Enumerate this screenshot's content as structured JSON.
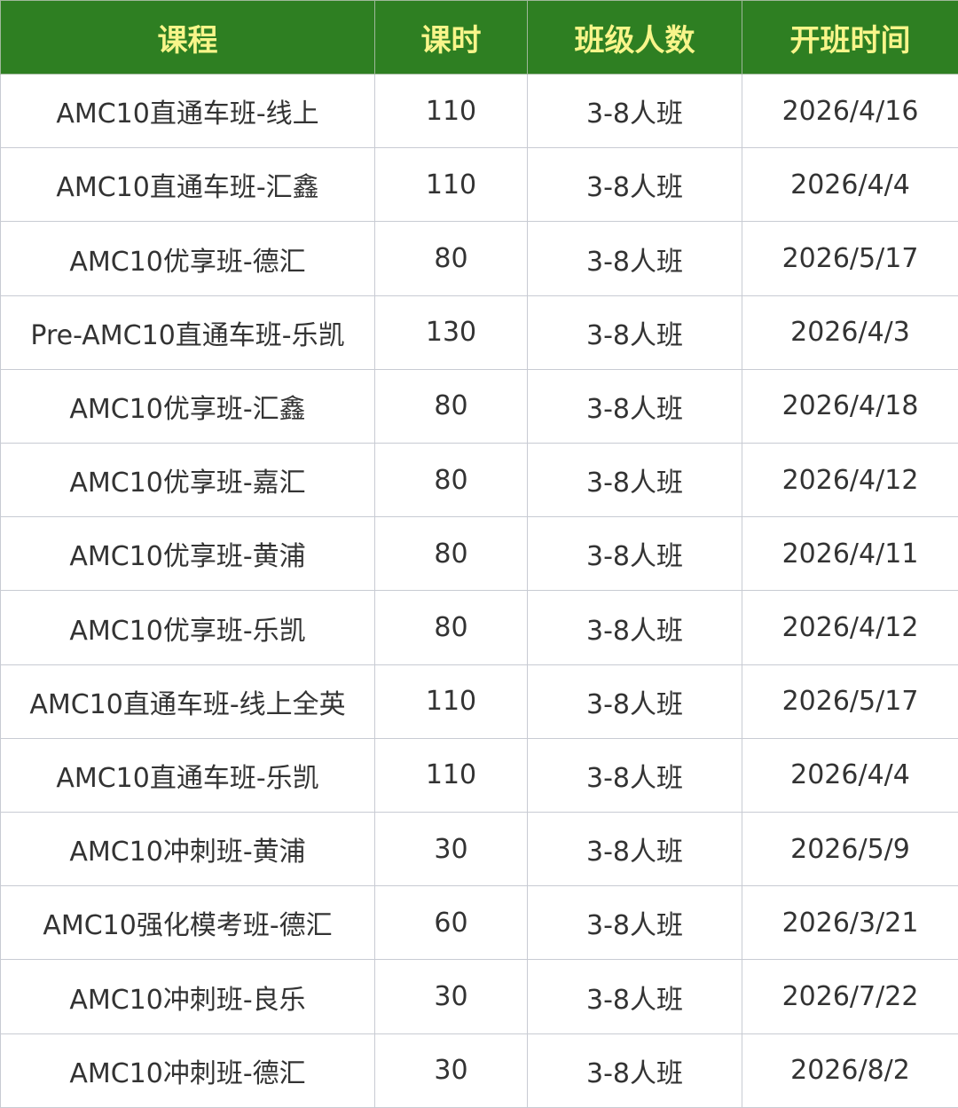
{
  "colors": {
    "header_bg": "#2e7f22",
    "header_text": "#f8f58a",
    "border": "#c8cbd3",
    "cell_text": "#333333"
  },
  "table": {
    "headers": [
      "课程",
      "课时",
      "班级人数",
      "开班时间"
    ],
    "rows": [
      [
        "AMC10直通车班-线上",
        "110",
        "3-8人班",
        "2026/4/16"
      ],
      [
        "AMC10直通车班-汇鑫",
        "110",
        "3-8人班",
        "2026/4/4"
      ],
      [
        "AMC10优享班-德汇",
        "80",
        "3-8人班",
        "2026/5/17"
      ],
      [
        "Pre-AMC10直通车班-乐凯",
        "130",
        "3-8人班",
        "2026/4/3"
      ],
      [
        "AMC10优享班-汇鑫",
        "80",
        "3-8人班",
        "2026/4/18"
      ],
      [
        "AMC10优享班-嘉汇",
        "80",
        "3-8人班",
        "2026/4/12"
      ],
      [
        "AMC10优享班-黄浦",
        "80",
        "3-8人班",
        "2026/4/11"
      ],
      [
        "AMC10优享班-乐凯",
        "80",
        "3-8人班",
        "2026/4/12"
      ],
      [
        "AMC10直通车班-线上全英",
        "110",
        "3-8人班",
        "2026/5/17"
      ],
      [
        "AMC10直通车班-乐凯",
        "110",
        "3-8人班",
        "2026/4/4"
      ],
      [
        "AMC10冲刺班-黄浦",
        "30",
        "3-8人班",
        "2026/5/9"
      ],
      [
        "AMC10强化模考班-德汇",
        "60",
        "3-8人班",
        "2026/3/21"
      ],
      [
        "AMC10冲刺班-良乐",
        "30",
        "3-8人班",
        "2026/7/22"
      ],
      [
        "AMC10冲刺班-德汇",
        "30",
        "3-8人班",
        "2026/8/2"
      ]
    ]
  }
}
